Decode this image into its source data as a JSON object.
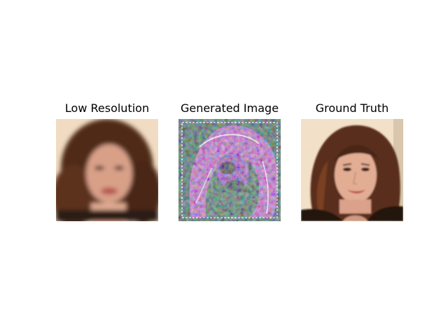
{
  "figure": {
    "panels": [
      {
        "title": "Low Resolution"
      },
      {
        "title": "Generated Image"
      },
      {
        "title": "Ground Truth"
      }
    ]
  },
  "colors": {
    "background": "#ffffff",
    "title_text": "#000000",
    "skin": "#e8b49a",
    "hair": "#5a2f1a",
    "backdrop": "#f2dfc6",
    "generated_green": "#1f6b3a",
    "generated_pink": "#c46bc4"
  }
}
